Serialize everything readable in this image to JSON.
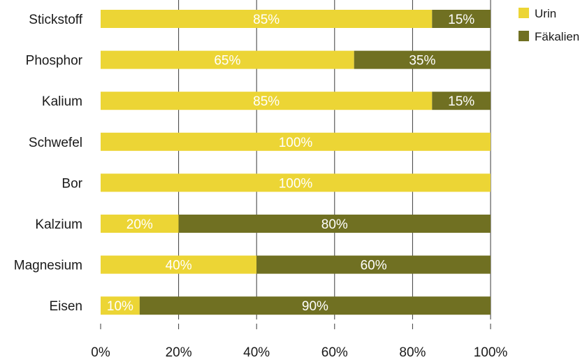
{
  "chart_data": {
    "type": "bar",
    "orientation": "horizontal",
    "stacked": true,
    "percent_format": true,
    "categories": [
      "Stickstoff",
      "Phosphor",
      "Kalium",
      "Schwefel",
      "Bor",
      "Kalzium",
      "Magnesium",
      "Eisen"
    ],
    "series": [
      {
        "name": "Urin",
        "color": "#ecd535",
        "values": [
          85,
          65,
          85,
          100,
          100,
          20,
          40,
          10
        ]
      },
      {
        "name": "Fäkalien",
        "color": "#707022",
        "values": [
          15,
          35,
          15,
          0,
          0,
          80,
          60,
          90
        ]
      }
    ],
    "xlim": [
      0,
      100
    ],
    "xticks": [
      "0%",
      "20%",
      "40%",
      "60%",
      "80%",
      "100%"
    ],
    "xtick_values": [
      0,
      20,
      40,
      60,
      80,
      100
    ],
    "grid": "vertical",
    "legend_position": "top-right",
    "title": "",
    "xlabel": "",
    "ylabel": ""
  }
}
